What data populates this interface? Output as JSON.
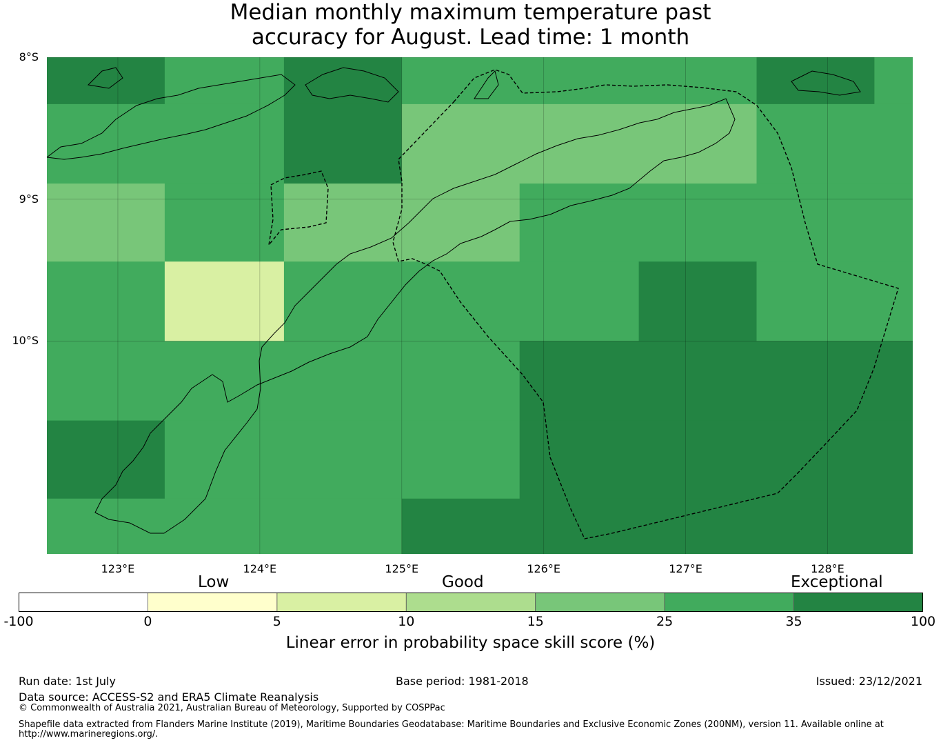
{
  "title": {
    "line1": "Median monthly maximum temperature past",
    "line2": "accuracy for August. Lead time: 1 month"
  },
  "map": {
    "lon_range": [
      122.5,
      128.6
    ],
    "lat_range": [
      -11.5,
      -8.0
    ],
    "lat_ticks": [
      {
        "value": -8,
        "label": "8°S"
      },
      {
        "value": -9,
        "label": "9°S"
      },
      {
        "value": -10,
        "label": "10°S"
      }
    ],
    "lon_ticks": [
      {
        "value": 123,
        "label": "123°E"
      },
      {
        "value": 124,
        "label": "124°E"
      },
      {
        "value": 125,
        "label": "125°E"
      },
      {
        "value": 126,
        "label": "126°E"
      },
      {
        "value": 127,
        "label": "127°E"
      },
      {
        "value": 128,
        "label": "128°E"
      }
    ],
    "grid_cells": [
      {
        "lon": [
          122.5,
          123.33
        ],
        "lat": [
          -8.33,
          -8.0
        ],
        "category": 6
      },
      {
        "lon": [
          123.33,
          124.17
        ],
        "lat": [
          -8.33,
          -8.0
        ],
        "category": 5
      },
      {
        "lon": [
          124.17,
          125.0
        ],
        "lat": [
          -8.33,
          -8.0
        ],
        "category": 6
      },
      {
        "lon": [
          125.0,
          127.5
        ],
        "lat": [
          -8.33,
          -8.0
        ],
        "category": 5
      },
      {
        "lon": [
          127.5,
          128.33
        ],
        "lat": [
          -8.33,
          -8.0
        ],
        "category": 6
      },
      {
        "lon": [
          128.33,
          128.6
        ],
        "lat": [
          -8.33,
          -8.0
        ],
        "category": 5
      },
      {
        "lon": [
          122.5,
          124.17
        ],
        "lat": [
          -8.89,
          -8.33
        ],
        "category": 5
      },
      {
        "lon": [
          124.17,
          125.0
        ],
        "lat": [
          -8.89,
          -8.33
        ],
        "category": 6
      },
      {
        "lon": [
          125.0,
          127.5
        ],
        "lat": [
          -8.89,
          -8.33
        ],
        "category": 4
      },
      {
        "lon": [
          127.5,
          128.6
        ],
        "lat": [
          -8.89,
          -8.33
        ],
        "category": 5
      },
      {
        "lon": [
          122.5,
          123.33
        ],
        "lat": [
          -9.44,
          -8.89
        ],
        "category": 4
      },
      {
        "lon": [
          123.33,
          124.17
        ],
        "lat": [
          -9.44,
          -8.89
        ],
        "category": 5
      },
      {
        "lon": [
          124.17,
          125.83
        ],
        "lat": [
          -9.44,
          -8.89
        ],
        "category": 4
      },
      {
        "lon": [
          125.83,
          128.6
        ],
        "lat": [
          -9.44,
          -8.89
        ],
        "category": 5
      },
      {
        "lon": [
          122.5,
          123.33
        ],
        "lat": [
          -10.0,
          -9.44
        ],
        "category": 5
      },
      {
        "lon": [
          123.33,
          124.17
        ],
        "lat": [
          -10.0,
          -9.44
        ],
        "category": 2
      },
      {
        "lon": [
          124.17,
          126.67
        ],
        "lat": [
          -10.0,
          -9.44
        ],
        "category": 5
      },
      {
        "lon": [
          126.67,
          127.5
        ],
        "lat": [
          -10.0,
          -9.44
        ],
        "category": 6
      },
      {
        "lon": [
          127.5,
          128.6
        ],
        "lat": [
          -10.0,
          -9.44
        ],
        "category": 5
      },
      {
        "lon": [
          122.5,
          125.83
        ],
        "lat": [
          -10.56,
          -10.0
        ],
        "category": 5
      },
      {
        "lon": [
          125.83,
          128.6
        ],
        "lat": [
          -10.56,
          -10.0
        ],
        "category": 6
      },
      {
        "lon": [
          122.5,
          123.33
        ],
        "lat": [
          -11.11,
          -10.56
        ],
        "category": 6
      },
      {
        "lon": [
          123.33,
          125.83
        ],
        "lat": [
          -11.11,
          -10.56
        ],
        "category": 5
      },
      {
        "lon": [
          125.83,
          128.6
        ],
        "lat": [
          -11.11,
          -10.56
        ],
        "category": 6
      },
      {
        "lon": [
          122.5,
          125.0
        ],
        "lat": [
          -11.5,
          -11.11
        ],
        "category": 5
      },
      {
        "lon": [
          125.0,
          128.6
        ],
        "lat": [
          -11.5,
          -11.11
        ],
        "category": 6
      }
    ]
  },
  "legend": {
    "bounds": [
      -100,
      0,
      5,
      10,
      15,
      25,
      35,
      100
    ],
    "tick_labels": [
      "-100",
      "0",
      "5",
      "10",
      "15",
      "25",
      "35",
      "100"
    ],
    "colors": [
      "#ffffff",
      "#ffffcc",
      "#d9f0a3",
      "#addd8e",
      "#78c679",
      "#41ab5d",
      "#238443"
    ],
    "categories": {
      "low": "Low",
      "good": "Good",
      "exceptional": "Exceptional"
    },
    "title": "Linear error in probability space skill score (%)"
  },
  "footer": {
    "run_date": "Run date: 1st July",
    "base_period": "Base period: 1981-2018",
    "issued": "Issued: 23/12/2021",
    "data_source": "Data source: ACCESS-S2 and ERA5 Climate Reanalysis",
    "copyright": "© Commonwealth of Australia 2021, Australian Bureau of Meteorology, Supported by COSPPac",
    "shapefile_line1": "Shapefile data extracted from Flanders Marine Institute (2019), Maritime Boundaries Geodatabase: Maritime Boundaries and Exclusive Economic Zones (200NM), version 11. Available online at",
    "shapefile_line2": "http://www.marineregions.org/."
  }
}
